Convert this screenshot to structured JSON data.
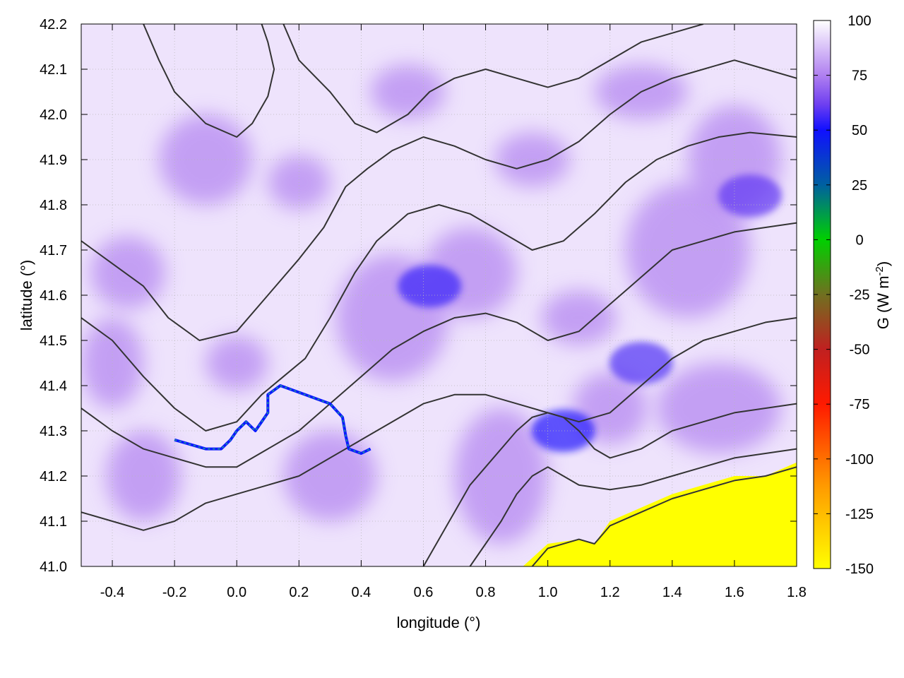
{
  "chart_data": {
    "type": "heatmap",
    "title": "",
    "xlabel": "longitude (°)",
    "ylabel": "latitude (°)",
    "colorbar_label": "G (W m",
    "colorbar_label_exp": "-2",
    "colorbar_label_close": ")",
    "xlim": [
      -0.5,
      1.8
    ],
    "ylim": [
      41.0,
      42.2
    ],
    "clim": [
      -150,
      100
    ],
    "grid": true,
    "x_ticks": [
      "-0.4",
      "-0.2",
      "0.0",
      "0.2",
      "0.4",
      "0.6",
      "0.8",
      "1.0",
      "1.2",
      "1.4",
      "1.6",
      "1.8"
    ],
    "y_ticks": [
      "41.0",
      "41.1",
      "41.2",
      "41.3",
      "41.4",
      "41.5",
      "41.6",
      "41.7",
      "41.8",
      "41.9",
      "42.0",
      "42.1",
      "42.2"
    ],
    "colorbar_ticks": [
      "100",
      "75",
      "50",
      "25",
      "0",
      "-25",
      "-50",
      "-75",
      "-100",
      "-125",
      "-150"
    ],
    "colormap": [
      {
        "value": -150,
        "color": "#ffff00"
      },
      {
        "value": -112,
        "color": "#ff9900"
      },
      {
        "value": -75,
        "color": "#ff1a00"
      },
      {
        "value": -50,
        "color": "#c02020"
      },
      {
        "value": -25,
        "color": "#707020"
      },
      {
        "value": 0,
        "color": "#00d000"
      },
      {
        "value": 25,
        "color": "#0060a0"
      },
      {
        "value": 50,
        "color": "#1010ff"
      },
      {
        "value": 62,
        "color": "#7040f0"
      },
      {
        "value": 75,
        "color": "#b080f0"
      },
      {
        "value": 100,
        "color": "#ffffff"
      }
    ],
    "field_description_values": {
      "background": 88,
      "lavender": 78,
      "dense_blue_patches": [
        {
          "lon": 1.05,
          "lat": 41.3,
          "value": 52
        },
        {
          "lon": 0.62,
          "lat": 41.62,
          "value": 55
        },
        {
          "lon": 1.65,
          "lat": 41.82,
          "value": 60
        },
        {
          "lon": 1.3,
          "lat": 41.45,
          "value": 58
        }
      ],
      "sea_region_value": -150
    },
    "sea_boundary": [
      [
        0.92,
        41.0
      ],
      [
        1.0,
        41.05
      ],
      [
        1.1,
        41.06
      ],
      [
        1.15,
        41.05
      ],
      [
        1.2,
        41.1
      ],
      [
        1.3,
        41.13
      ],
      [
        1.4,
        41.16
      ],
      [
        1.5,
        41.18
      ],
      [
        1.6,
        41.2
      ],
      [
        1.7,
        41.2
      ],
      [
        1.8,
        41.23
      ]
    ],
    "contours": [
      [
        [
          -0.5,
          41.72
        ],
        [
          -0.42,
          41.68
        ],
        [
          -0.3,
          41.62
        ],
        [
          -0.22,
          41.55
        ],
        [
          -0.12,
          41.5
        ],
        [
          0.0,
          41.52
        ],
        [
          0.1,
          41.6
        ],
        [
          0.2,
          41.68
        ],
        [
          0.28,
          41.75
        ],
        [
          0.35,
          41.84
        ],
        [
          0.42,
          41.88
        ],
        [
          0.5,
          41.92
        ],
        [
          0.6,
          41.95
        ],
        [
          0.7,
          41.93
        ],
        [
          0.8,
          41.9
        ],
        [
          0.9,
          41.88
        ],
        [
          1.0,
          41.9
        ],
        [
          1.1,
          41.94
        ],
        [
          1.2,
          42.0
        ],
        [
          1.3,
          42.05
        ],
        [
          1.4,
          42.08
        ],
        [
          1.5,
          42.1
        ],
        [
          1.6,
          42.12
        ],
        [
          1.7,
          42.1
        ],
        [
          1.8,
          42.08
        ]
      ],
      [
        [
          -0.5,
          41.55
        ],
        [
          -0.4,
          41.5
        ],
        [
          -0.3,
          41.42
        ],
        [
          -0.2,
          41.35
        ],
        [
          -0.1,
          41.3
        ],
        [
          0.0,
          41.32
        ],
        [
          0.08,
          41.38
        ],
        [
          0.15,
          41.42
        ],
        [
          0.22,
          41.46
        ],
        [
          0.3,
          41.55
        ],
        [
          0.38,
          41.65
        ],
        [
          0.45,
          41.72
        ],
        [
          0.55,
          41.78
        ],
        [
          0.65,
          41.8
        ],
        [
          0.75,
          41.78
        ],
        [
          0.85,
          41.74
        ],
        [
          0.95,
          41.7
        ],
        [
          1.05,
          41.72
        ],
        [
          1.15,
          41.78
        ],
        [
          1.25,
          41.85
        ],
        [
          1.35,
          41.9
        ],
        [
          1.45,
          41.93
        ],
        [
          1.55,
          41.95
        ],
        [
          1.65,
          41.96
        ],
        [
          1.8,
          41.95
        ]
      ],
      [
        [
          -0.5,
          41.35
        ],
        [
          -0.4,
          41.3
        ],
        [
          -0.3,
          41.26
        ],
        [
          -0.2,
          41.24
        ],
        [
          -0.1,
          41.22
        ],
        [
          0.0,
          41.22
        ],
        [
          0.1,
          41.26
        ],
        [
          0.2,
          41.3
        ],
        [
          0.3,
          41.36
        ],
        [
          0.4,
          41.42
        ],
        [
          0.5,
          41.48
        ],
        [
          0.6,
          41.52
        ],
        [
          0.7,
          41.55
        ],
        [
          0.8,
          41.56
        ],
        [
          0.9,
          41.54
        ],
        [
          1.0,
          41.5
        ],
        [
          1.1,
          41.52
        ],
        [
          1.2,
          41.58
        ],
        [
          1.3,
          41.64
        ],
        [
          1.4,
          41.7
        ],
        [
          1.5,
          41.72
        ],
        [
          1.6,
          41.74
        ],
        [
          1.7,
          41.75
        ],
        [
          1.8,
          41.76
        ]
      ],
      [
        [
          -0.5,
          41.12
        ],
        [
          -0.4,
          41.1
        ],
        [
          -0.3,
          41.08
        ],
        [
          -0.2,
          41.1
        ],
        [
          -0.1,
          41.14
        ],
        [
          0.0,
          41.16
        ],
        [
          0.1,
          41.18
        ],
        [
          0.2,
          41.2
        ],
        [
          0.3,
          41.24
        ],
        [
          0.4,
          41.28
        ],
        [
          0.5,
          41.32
        ],
        [
          0.6,
          41.36
        ],
        [
          0.7,
          41.38
        ],
        [
          0.8,
          41.38
        ],
        [
          0.9,
          41.36
        ],
        [
          1.0,
          41.34
        ],
        [
          1.1,
          41.32
        ],
        [
          1.2,
          41.34
        ],
        [
          1.3,
          41.4
        ],
        [
          1.4,
          41.46
        ],
        [
          1.5,
          41.5
        ],
        [
          1.6,
          41.52
        ],
        [
          1.7,
          41.54
        ],
        [
          1.8,
          41.55
        ]
      ],
      [
        [
          0.6,
          41.0
        ],
        [
          0.65,
          41.06
        ],
        [
          0.7,
          41.12
        ],
        [
          0.75,
          41.18
        ],
        [
          0.8,
          41.22
        ],
        [
          0.85,
          41.26
        ],
        [
          0.9,
          41.3
        ],
        [
          0.95,
          41.33
        ],
        [
          1.0,
          41.34
        ],
        [
          1.05,
          41.33
        ],
        [
          1.1,
          41.3
        ],
        [
          1.15,
          41.26
        ],
        [
          1.2,
          41.24
        ],
        [
          1.3,
          41.26
        ],
        [
          1.4,
          41.3
        ],
        [
          1.5,
          41.32
        ],
        [
          1.6,
          41.34
        ],
        [
          1.7,
          41.35
        ],
        [
          1.8,
          41.36
        ]
      ],
      [
        [
          0.75,
          41.0
        ],
        [
          0.8,
          41.05
        ],
        [
          0.85,
          41.1
        ],
        [
          0.9,
          41.16
        ],
        [
          0.95,
          41.2
        ],
        [
          1.0,
          41.22
        ],
        [
          1.05,
          41.2
        ],
        [
          1.1,
          41.18
        ],
        [
          1.2,
          41.17
        ],
        [
          1.3,
          41.18
        ],
        [
          1.4,
          41.2
        ],
        [
          1.5,
          41.22
        ],
        [
          1.6,
          41.24
        ],
        [
          1.7,
          41.25
        ],
        [
          1.8,
          41.26
        ]
      ],
      [
        [
          0.95,
          41.0
        ],
        [
          1.0,
          41.04
        ],
        [
          1.1,
          41.06
        ],
        [
          1.15,
          41.05
        ],
        [
          1.2,
          41.09
        ],
        [
          1.3,
          41.12
        ],
        [
          1.4,
          41.15
        ],
        [
          1.5,
          41.17
        ],
        [
          1.6,
          41.19
        ],
        [
          1.7,
          41.2
        ],
        [
          1.8,
          41.22
        ]
      ],
      [
        [
          0.15,
          42.2
        ],
        [
          0.2,
          42.12
        ],
        [
          0.3,
          42.05
        ],
        [
          0.38,
          41.98
        ],
        [
          0.45,
          41.96
        ],
        [
          0.55,
          42.0
        ],
        [
          0.62,
          42.05
        ],
        [
          0.7,
          42.08
        ],
        [
          0.8,
          42.1
        ],
        [
          0.9,
          42.08
        ],
        [
          1.0,
          42.06
        ],
        [
          1.1,
          42.08
        ],
        [
          1.2,
          42.12
        ],
        [
          1.3,
          42.16
        ],
        [
          1.4,
          42.18
        ],
        [
          1.5,
          42.2
        ]
      ],
      [
        [
          -0.3,
          42.2
        ],
        [
          -0.25,
          42.12
        ],
        [
          -0.2,
          42.05
        ],
        [
          -0.1,
          41.98
        ],
        [
          0.0,
          41.95
        ],
        [
          0.05,
          41.98
        ],
        [
          0.1,
          42.04
        ],
        [
          0.12,
          42.1
        ],
        [
          0.1,
          42.16
        ],
        [
          0.08,
          42.2
        ]
      ]
    ],
    "river": [
      [
        -0.2,
        41.28
      ],
      [
        -0.15,
        41.27
      ],
      [
        -0.1,
        41.26
      ],
      [
        -0.05,
        41.26
      ],
      [
        -0.02,
        41.28
      ],
      [
        0.0,
        41.3
      ],
      [
        0.03,
        41.32
      ],
      [
        0.06,
        41.3
      ],
      [
        0.08,
        41.32
      ],
      [
        0.1,
        41.34
      ],
      [
        0.1,
        41.38
      ],
      [
        0.14,
        41.4
      ],
      [
        0.18,
        41.39
      ],
      [
        0.22,
        41.38
      ],
      [
        0.26,
        41.37
      ],
      [
        0.3,
        41.36
      ],
      [
        0.34,
        41.33
      ],
      [
        0.35,
        41.29
      ],
      [
        0.36,
        41.26
      ],
      [
        0.4,
        41.25
      ],
      [
        0.43,
        41.26
      ]
    ]
  }
}
